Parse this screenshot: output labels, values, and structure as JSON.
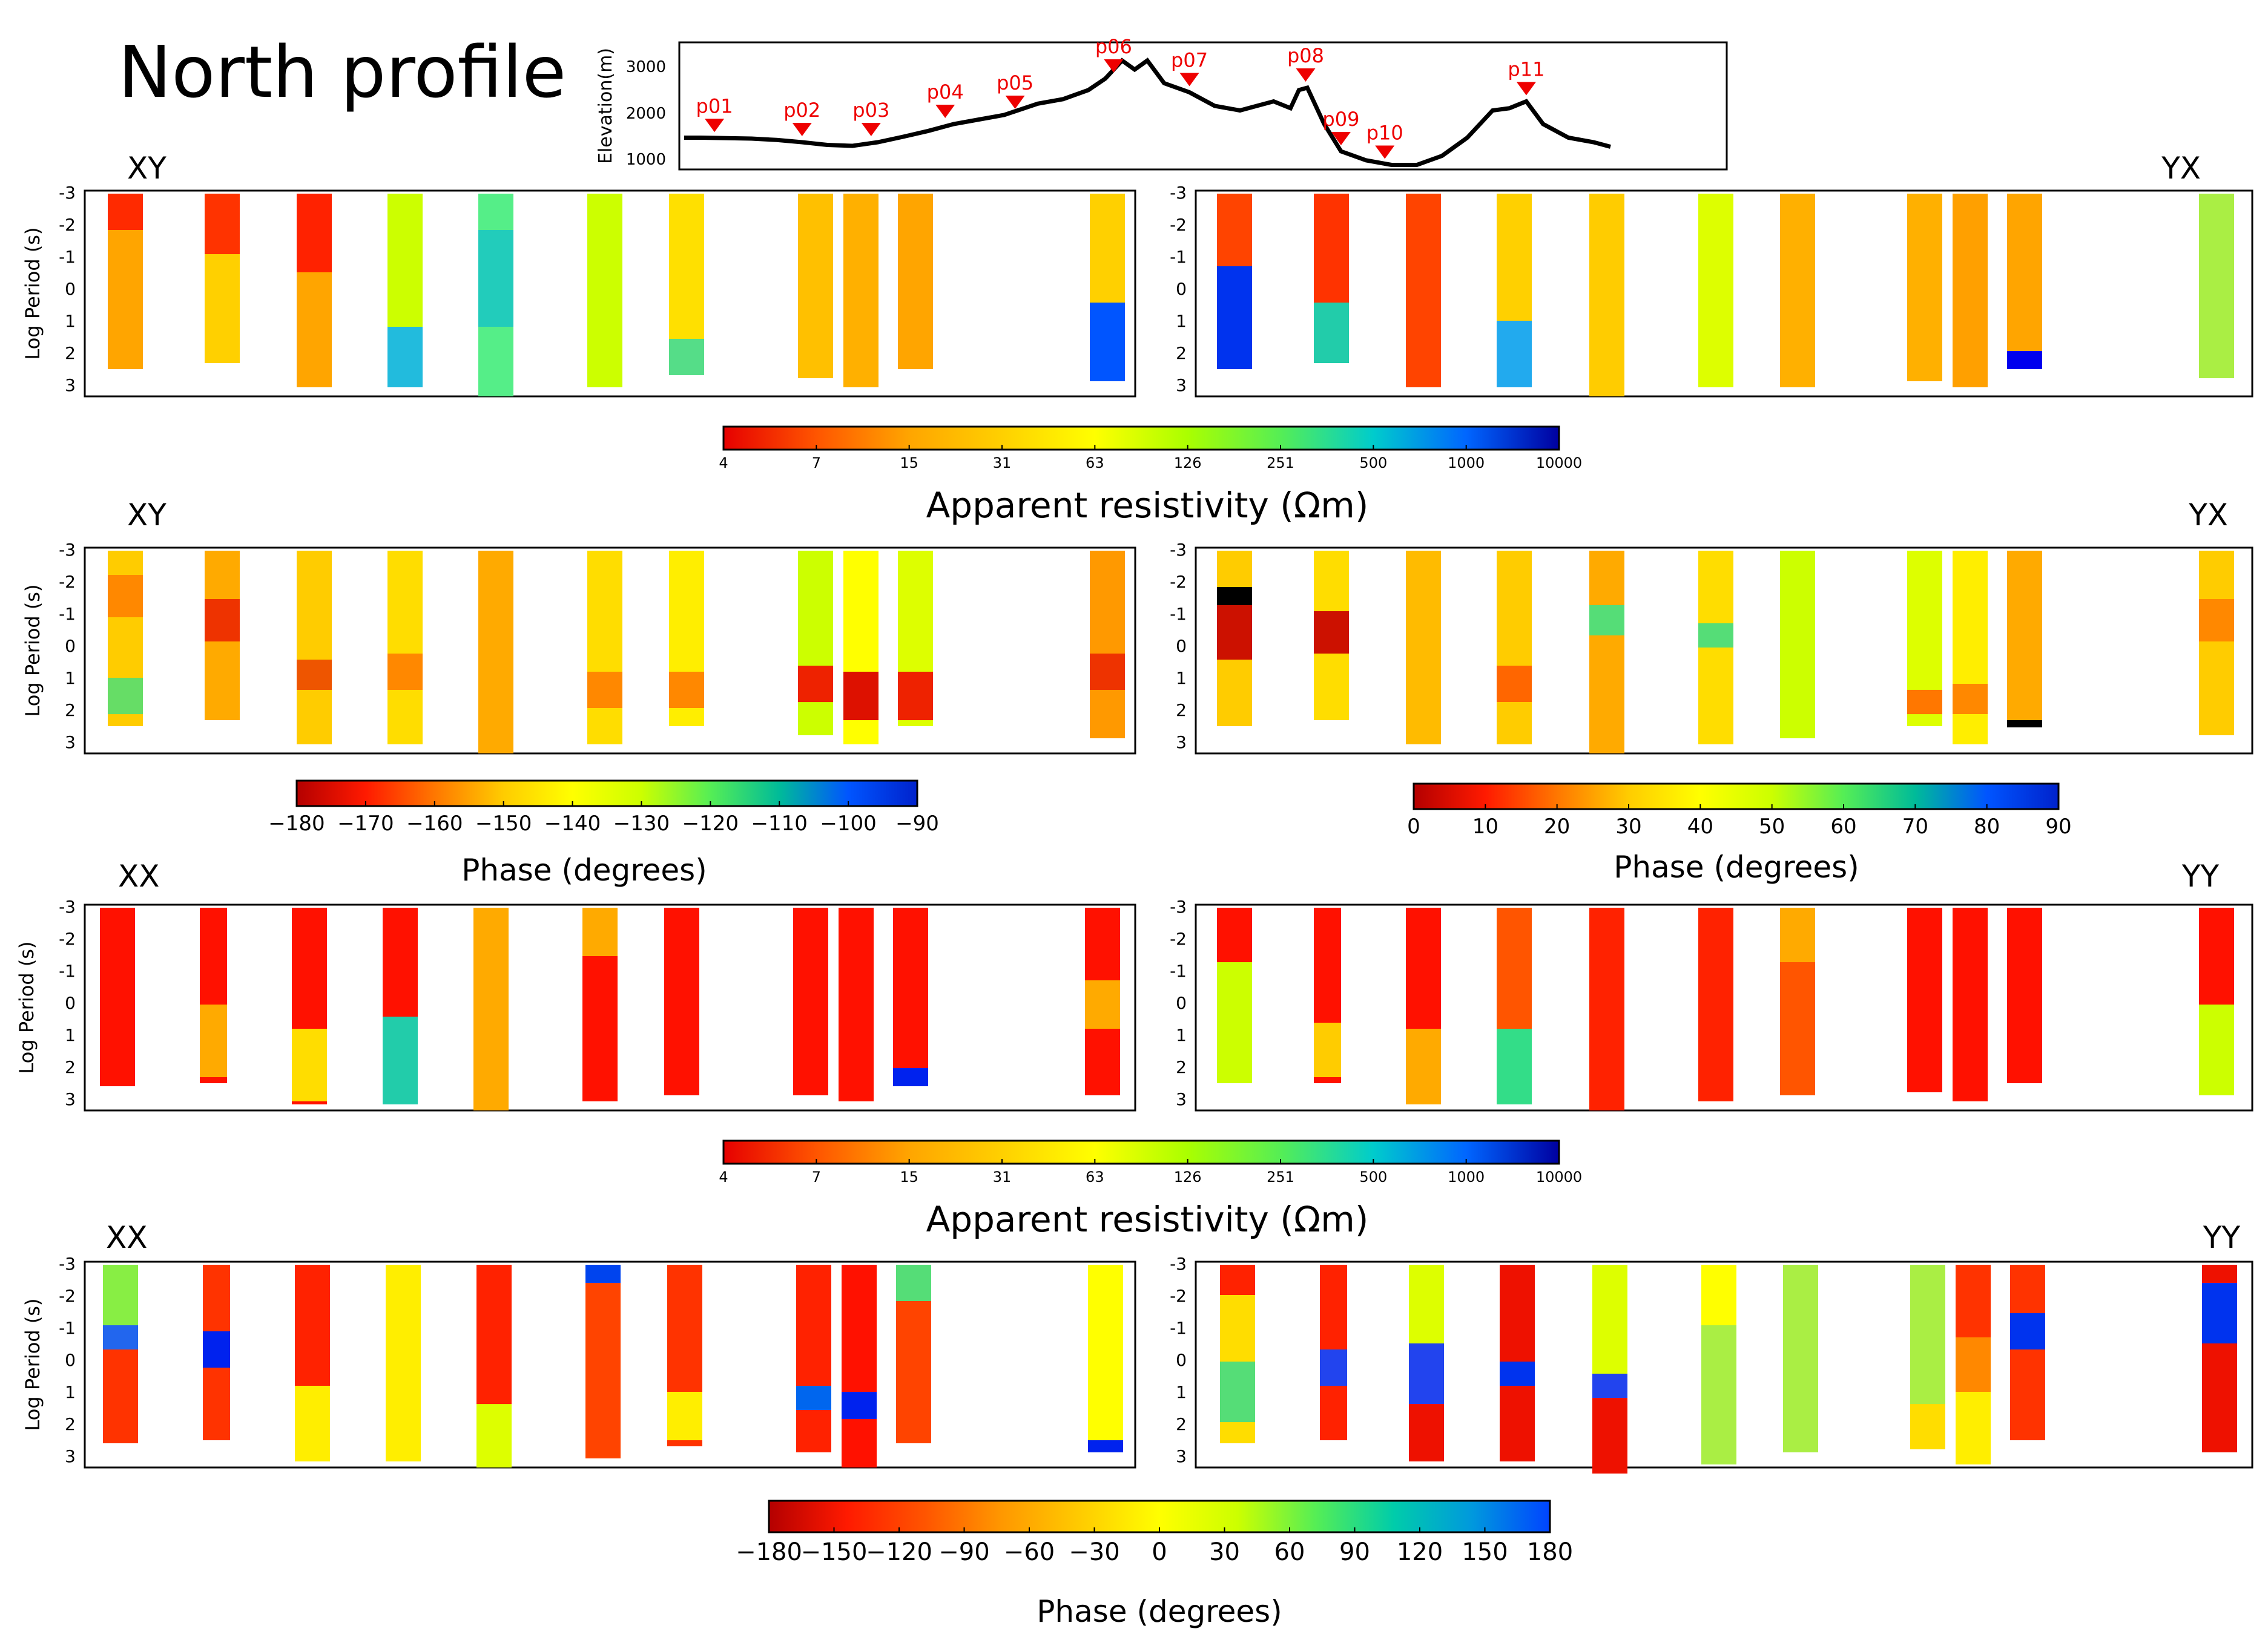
{
  "title": "North profile",
  "elevation": {
    "ylabel": "Elevation(m)",
    "yticks": [
      "1000",
      "2000",
      "3000"
    ],
    "ylim": [
      800,
      3600
    ],
    "profile": [
      [
        0,
        1500
      ],
      [
        0.02,
        1500
      ],
      [
        0.05,
        1490
      ],
      [
        0.08,
        1480
      ],
      [
        0.11,
        1450
      ],
      [
        0.14,
        1400
      ],
      [
        0.17,
        1340
      ],
      [
        0.2,
        1320
      ],
      [
        0.23,
        1400
      ],
      [
        0.26,
        1520
      ],
      [
        0.29,
        1650
      ],
      [
        0.32,
        1800
      ],
      [
        0.35,
        1900
      ],
      [
        0.38,
        2000
      ],
      [
        0.42,
        2250
      ],
      [
        0.45,
        2350
      ],
      [
        0.48,
        2550
      ],
      [
        0.5,
        2800
      ],
      [
        0.52,
        3200
      ],
      [
        0.535,
        3000
      ],
      [
        0.55,
        3200
      ],
      [
        0.57,
        2700
      ],
      [
        0.6,
        2500
      ],
      [
        0.63,
        2200
      ],
      [
        0.66,
        2100
      ],
      [
        0.68,
        2200
      ],
      [
        0.7,
        2300
      ],
      [
        0.72,
        2150
      ],
      [
        0.73,
        2550
      ],
      [
        0.74,
        2600
      ],
      [
        0.76,
        1800
      ],
      [
        0.78,
        1200
      ],
      [
        0.81,
        1000
      ],
      [
        0.84,
        900
      ],
      [
        0.87,
        900
      ],
      [
        0.9,
        1100
      ],
      [
        0.93,
        1500
      ],
      [
        0.96,
        2100
      ],
      [
        0.98,
        2150
      ],
      [
        1.0,
        2300
      ],
      [
        1.02,
        1800
      ],
      [
        1.05,
        1500
      ],
      [
        1.08,
        1400
      ],
      [
        1.1,
        1300
      ]
    ],
    "stations": [
      {
        "label": "p01",
        "x": 0.036
      },
      {
        "label": "p02",
        "x": 0.14
      },
      {
        "label": "p03",
        "x": 0.222
      },
      {
        "label": "p04",
        "x": 0.31
      },
      {
        "label": "p05",
        "x": 0.393
      },
      {
        "label": "p06",
        "x": 0.51
      },
      {
        "label": "p07",
        "x": 0.6
      },
      {
        "label": "p08",
        "x": 0.738
      },
      {
        "label": "p09",
        "x": 0.78
      },
      {
        "label": "p10",
        "x": 0.832
      },
      {
        "label": "p11",
        "x": 1.0
      }
    ]
  },
  "panel_axis": {
    "ylabel": "Log Period (s)",
    "yticks": [
      "-3",
      "-2",
      "-1",
      "0",
      "1",
      "2",
      "3"
    ],
    "ylim": [
      -3,
      3.4
    ]
  },
  "panel_titles": {
    "xy_rho": "XY",
    "yx_rho": "YX",
    "xy_phase": "XY",
    "yx_phase": "YX",
    "xx_rho": "XX",
    "yy_rho": "YY",
    "xx_phase": "XX",
    "yy_phase": "YY"
  },
  "colorbars": {
    "rho1": {
      "label": "Apparent resistivity (Ωm)",
      "ticks": [
        "4",
        "7",
        "15",
        "31",
        "63",
        "126",
        "251",
        "500",
        "1000",
        "10000"
      ],
      "colors": [
        "#e60000",
        "#ff5500",
        "#ffa500",
        "#ffd000",
        "#ffff00",
        "#aaff00",
        "#55ee55",
        "#00cccc",
        "#0066ff",
        "#0000a0"
      ]
    },
    "phase_xy": {
      "label": "Phase (degrees)",
      "ticks": [
        "−180",
        "−170",
        "−160",
        "−150",
        "−140",
        "−130",
        "−120",
        "−110",
        "−100",
        "−90"
      ],
      "colors": [
        "#b40000",
        "#ff1a00",
        "#ff7700",
        "#ffcc00",
        "#ffff00",
        "#ccff00",
        "#55ee55",
        "#00bb99",
        "#0055ff",
        "#0022cc"
      ]
    },
    "phase_yx": {
      "label": "Phase (degrees)",
      "ticks": [
        "0",
        "10",
        "20",
        "30",
        "40",
        "50",
        "60",
        "70",
        "80",
        "90"
      ],
      "colors": [
        "#b40000",
        "#ff1a00",
        "#ff7700",
        "#ffcc00",
        "#ffff00",
        "#ccff00",
        "#55ee55",
        "#00bb99",
        "#0055ff",
        "#0022cc"
      ]
    },
    "rho2": {
      "label": "Apparent resistivity (Ωm)",
      "ticks": [
        "4",
        "7",
        "15",
        "31",
        "63",
        "126",
        "251",
        "500",
        "1000",
        "10000"
      ],
      "colors": [
        "#e60000",
        "#ff5500",
        "#ffa500",
        "#ffd000",
        "#ffff00",
        "#aaff00",
        "#55ee55",
        "#00cccc",
        "#0066ff",
        "#0000a0"
      ]
    },
    "phase_diag": {
      "label": "Phase (degrees)",
      "ticks": [
        "−180",
        "−150",
        "−120",
        "−90",
        "−60",
        "−30",
        "0",
        "30",
        "60",
        "90",
        "120",
        "150",
        "180"
      ],
      "colors": [
        "#b40000",
        "#ff1a00",
        "#ff5500",
        "#ff9900",
        "#ffcc00",
        "#ffff00",
        "#ccff00",
        "#55ee55",
        "#00ccaa",
        "#0099dd",
        "#0044ff"
      ]
    }
  }
}
